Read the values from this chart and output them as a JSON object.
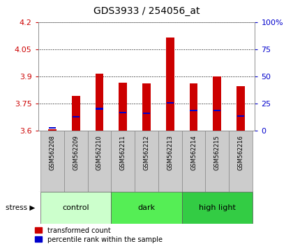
{
  "title": "GDS3933 / 254056_at",
  "samples": [
    "GSM562208",
    "GSM562209",
    "GSM562210",
    "GSM562211",
    "GSM562212",
    "GSM562213",
    "GSM562214",
    "GSM562215",
    "GSM562216"
  ],
  "red_values": [
    3.605,
    3.79,
    3.915,
    3.865,
    3.862,
    4.115,
    3.862,
    3.9,
    3.845
  ],
  "blue_values": [
    3.615,
    3.675,
    3.72,
    3.7,
    3.695,
    3.752,
    3.71,
    3.71,
    3.68
  ],
  "ymin": 3.6,
  "ymax": 4.2,
  "yticks": [
    3.6,
    3.75,
    3.9,
    4.05,
    4.2
  ],
  "ytick_labels": [
    "3.6",
    "3.75",
    "3.9",
    "4.05",
    "4.2"
  ],
  "right_yticks": [
    0,
    25,
    50,
    75,
    100
  ],
  "right_ytick_labels": [
    "0",
    "25",
    "50",
    "75",
    "100%"
  ],
  "left_color": "#cc0000",
  "right_color": "#0000cc",
  "groups": [
    {
      "label": "control",
      "start": 0,
      "end": 3,
      "color": "#ccffcc"
    },
    {
      "label": "dark",
      "start": 3,
      "end": 6,
      "color": "#55ee55"
    },
    {
      "label": "high light",
      "start": 6,
      "end": 9,
      "color": "#33cc44"
    }
  ],
  "bar_width": 0.35,
  "blue_bar_width": 0.3,
  "blue_bar_height": 0.008,
  "grid_color": "#000000",
  "sample_bg_color": "#cccccc",
  "legend_red_label": "transformed count",
  "legend_blue_label": "percentile rank within the sample"
}
